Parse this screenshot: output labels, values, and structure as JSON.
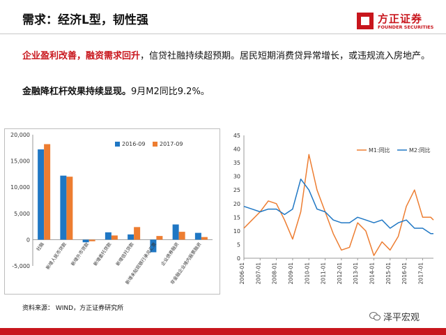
{
  "slide": {
    "title": "需求：经济L型，韧性强",
    "logo_cn": "方正证券",
    "logo_en": "FOUNDER SECURITIES",
    "para1_red": "企业盈利改善，融资需求回升",
    "para1_rest": "，信贷社融持续超预期。居民短期消费贷异常增长，或违规流入房地产。",
    "para2_bold": "金融降杠杆效果持续显现。",
    "para2_rest": "9月M2同比9.2%。",
    "source": "资料来源： WIND，方正证券研究所",
    "watermark": "泽平宏观"
  },
  "colors": {
    "brand_red": "#c8161d",
    "series_blue": "#1f77c4",
    "series_orange": "#ed7d31"
  },
  "chart_data": [
    {
      "type": "bar",
      "categories": [
        "社融",
        "新增人民币贷款",
        "新增外币贷款",
        "新增委托贷款",
        "新增信托贷款",
        "新增未贴现银行承兑汇票",
        "企业债券融资",
        "非金融企业境内股票融资"
      ],
      "series": [
        {
          "name": "2016-09",
          "values": [
            17200,
            12200,
            -500,
            1400,
            1000,
            -2400,
            2900,
            1300
          ]
        },
        {
          "name": "2017-09",
          "values": [
            18200,
            12000,
            -300,
            800,
            2400,
            700,
            1500,
            500
          ]
        }
      ],
      "ylim": [
        -5000,
        20000
      ],
      "yticks": [
        "-5,000",
        "0",
        "5,000",
        "10,000",
        "15,000",
        "20,000"
      ],
      "legend": "top-right"
    },
    {
      "type": "line",
      "x": [
        "2006-01",
        "2006-07",
        "2007-01",
        "2007-07",
        "2008-01",
        "2008-07",
        "2009-01",
        "2009-07",
        "2010-01",
        "2010-07",
        "2011-01",
        "2011-07",
        "2012-01",
        "2012-07",
        "2013-01",
        "2013-07",
        "2014-01",
        "2014-07",
        "2015-01",
        "2015-07",
        "2016-01",
        "2016-07",
        "2017-01",
        "2017-07",
        "2017-09"
      ],
      "x_ticks": [
        "2006-01",
        "2007-01",
        "2008-01",
        "2009-01",
        "2010-01",
        "2011-01",
        "2012-01",
        "2013-01",
        "2014-01",
        "2015-01",
        "2016-01",
        "2017-01"
      ],
      "series": [
        {
          "name": "M1:同比",
          "values": [
            11,
            14,
            17,
            21,
            20,
            14,
            7,
            17,
            38,
            25,
            17,
            9,
            3,
            4,
            13,
            10,
            1,
            6,
            3,
            8,
            19,
            25,
            15,
            15,
            14
          ]
        },
        {
          "name": "M2:同比",
          "values": [
            19,
            18,
            17,
            18,
            18,
            16,
            18,
            29,
            25,
            18,
            17,
            14,
            13,
            13,
            15,
            14,
            13,
            14,
            11,
            13,
            14,
            11,
            11,
            9,
            9
          ]
        }
      ],
      "ylim": [
        0,
        45
      ],
      "yticks": [
        "0",
        "5",
        "10",
        "15",
        "20",
        "25",
        "30",
        "35",
        "40",
        "45"
      ],
      "legend": "top-right"
    }
  ]
}
